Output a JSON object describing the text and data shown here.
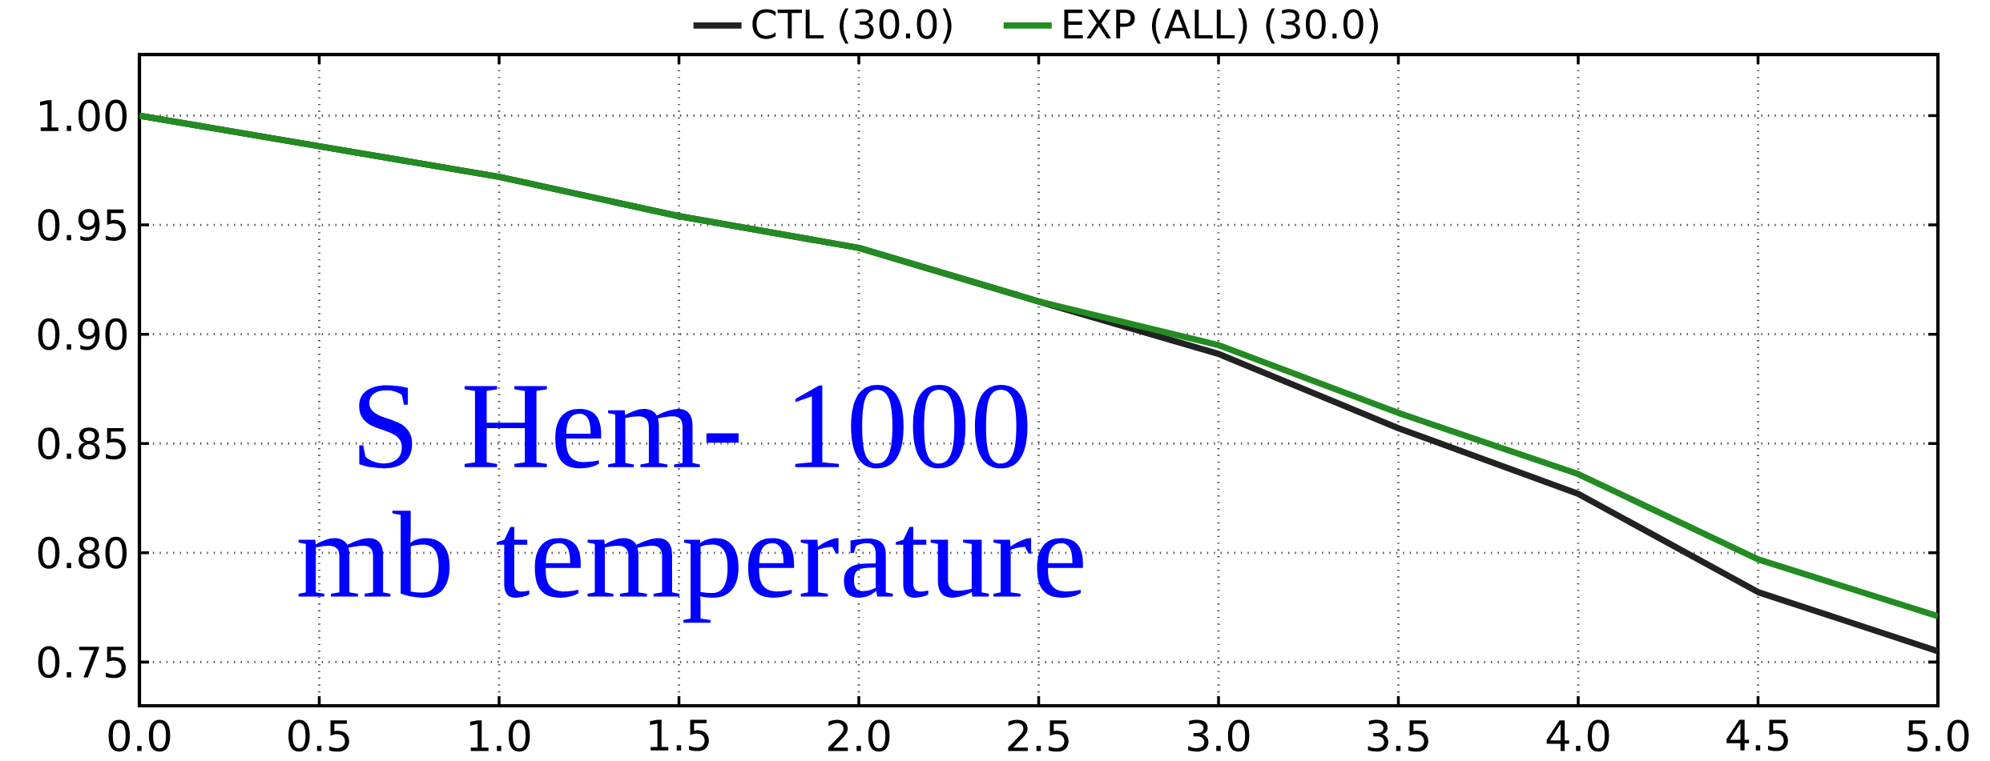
{
  "chart_data": {
    "type": "line",
    "x": [
      0,
      0.5,
      1,
      1.5,
      2,
      2.5,
      3,
      3.5,
      4,
      4.5,
      5
    ],
    "series": [
      {
        "name": "CTL (30.0)",
        "color": "#222222",
        "values": [
          1.0,
          0.986,
          0.972,
          0.954,
          0.9395,
          0.915,
          0.891,
          0.857,
          0.827,
          0.782,
          0.755
        ]
      },
      {
        "name": "EXP (ALL) (30.0)",
        "color": "#228b22",
        "values": [
          1.0,
          0.986,
          0.972,
          0.954,
          0.9395,
          0.915,
          0.895,
          0.864,
          0.836,
          0.797,
          0.771
        ]
      }
    ],
    "xlim": [
      0,
      5
    ],
    "ylim": [
      0.73,
      1.028
    ],
    "xticks": [
      {
        "value": 0,
        "label": "0.0"
      },
      {
        "value": 0.5,
        "label": "0.5"
      },
      {
        "value": 1,
        "label": "1.0"
      },
      {
        "value": 1.5,
        "label": "1.5"
      },
      {
        "value": 2,
        "label": "2.0"
      },
      {
        "value": 2.5,
        "label": "2.5"
      },
      {
        "value": 3,
        "label": "3.0"
      },
      {
        "value": 3.5,
        "label": "3.5"
      },
      {
        "value": 4,
        "label": "4.0"
      },
      {
        "value": 4.5,
        "label": "4.5"
      },
      {
        "value": 5,
        "label": "5.0"
      }
    ],
    "yticks": [
      {
        "value": 0.75,
        "label": "0.75"
      },
      {
        "value": 0.8,
        "label": "0.80"
      },
      {
        "value": 0.85,
        "label": "0.85"
      },
      {
        "value": 0.9,
        "label": "0.90"
      },
      {
        "value": 0.95,
        "label": "0.95"
      },
      {
        "value": 1.0,
        "label": "1.00"
      }
    ],
    "grid": true,
    "legend": "top",
    "annotations": [
      "S Hem- 1000 mb temperature"
    ]
  }
}
